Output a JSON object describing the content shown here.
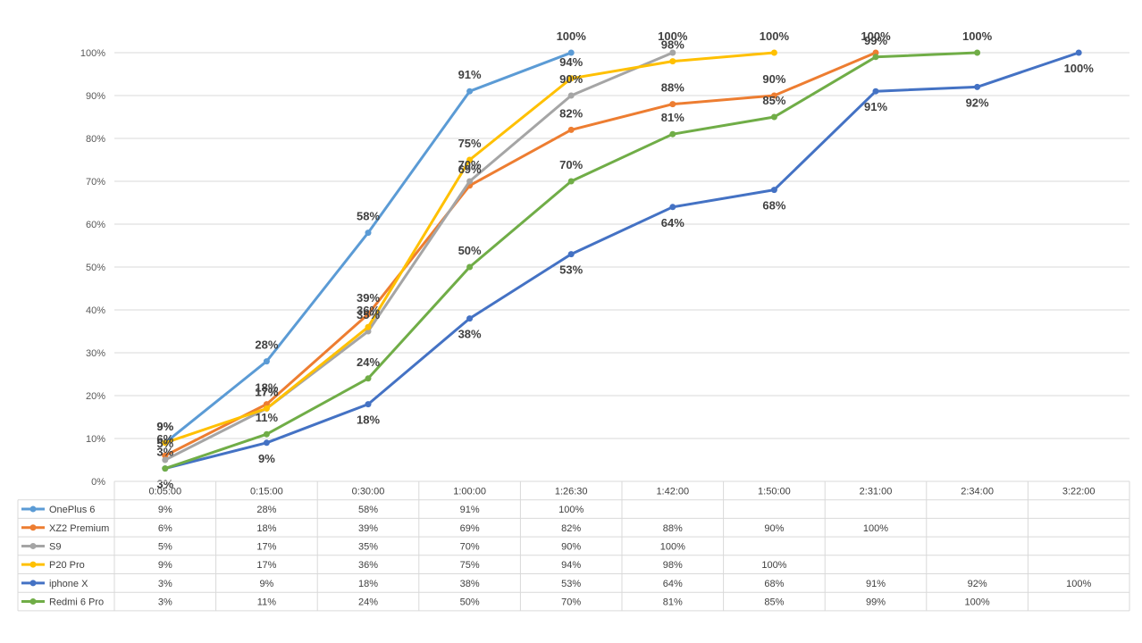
{
  "chart_data": {
    "type": "line",
    "categories": [
      "0:05:00",
      "0:15:00",
      "0:30:00",
      "1:00:00",
      "1:26:30",
      "1:42:00",
      "1:50:00",
      "2:31:00",
      "2:34:00",
      "3:22:00"
    ],
    "ylim": [
      0,
      100
    ],
    "yticks": [
      "0%",
      "10%",
      "20%",
      "30%",
      "40%",
      "50%",
      "60%",
      "70%",
      "80%",
      "90%",
      "100%"
    ],
    "grid": true,
    "legend": "data-table-below",
    "series": [
      {
        "name": "OnePlus 6",
        "color": "#5B9BD5",
        "values": [
          9,
          28,
          58,
          91,
          100,
          null,
          null,
          null,
          null,
          null
        ]
      },
      {
        "name": "XZ2 Premium",
        "color": "#ED7D31",
        "values": [
          6,
          18,
          39,
          69,
          82,
          88,
          90,
          100,
          null,
          null
        ]
      },
      {
        "name": "S9",
        "color": "#A5A5A5",
        "values": [
          5,
          17,
          35,
          70,
          90,
          100,
          null,
          null,
          null,
          null
        ]
      },
      {
        "name": "P20 Pro",
        "color": "#FFC000",
        "values": [
          9,
          17,
          36,
          75,
          94,
          98,
          100,
          null,
          null,
          null
        ]
      },
      {
        "name": "iphone X",
        "color": "#4472C4",
        "values": [
          3,
          9,
          18,
          38,
          53,
          64,
          68,
          91,
          92,
          100
        ]
      },
      {
        "name": "Redmi 6 Pro",
        "color": "#70AD47",
        "values": [
          3,
          11,
          24,
          50,
          70,
          81,
          85,
          99,
          100,
          null
        ]
      }
    ]
  }
}
